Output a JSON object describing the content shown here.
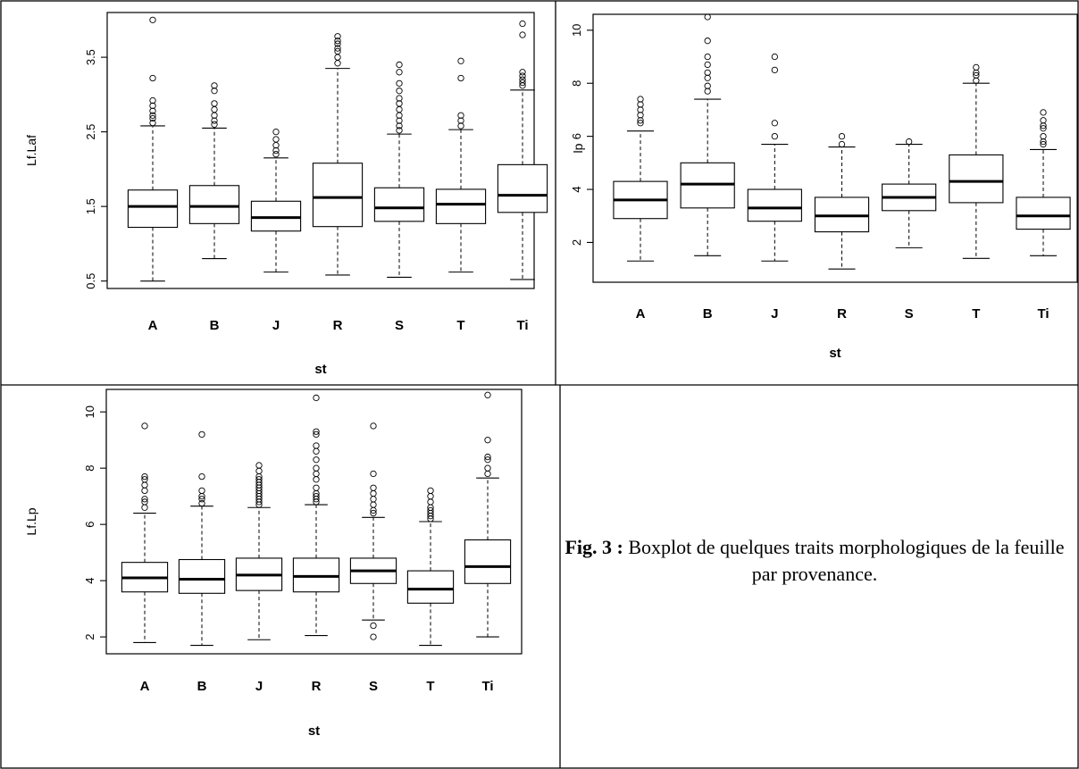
{
  "figure": {
    "caption_label": "Fig. 3 :",
    "caption_text": " Boxplot de quelques traits morphologiques de la feuille par provenance."
  },
  "chart_data": [
    {
      "type": "boxplot",
      "xlabel": "st",
      "ylabel": "Lf.Laf",
      "categories": [
        "A",
        "B",
        "J",
        "R",
        "S",
        "T",
        "Ti"
      ],
      "ylim": [
        0.4,
        4.1
      ],
      "yticks": [
        0.5,
        1.5,
        2.5,
        3.5
      ],
      "boxes": [
        {
          "whisker_low": 0.5,
          "q1": 1.22,
          "median": 1.5,
          "q3": 1.72,
          "whisker_high": 2.58,
          "outliers": [
            2.62,
            2.68,
            2.72,
            2.78,
            2.85,
            2.92,
            3.22,
            4.0
          ]
        },
        {
          "whisker_low": 0.8,
          "q1": 1.27,
          "median": 1.5,
          "q3": 1.78,
          "whisker_high": 2.55,
          "outliers": [
            2.6,
            2.65,
            2.72,
            2.8,
            2.88,
            3.05,
            3.12
          ]
        },
        {
          "whisker_low": 0.62,
          "q1": 1.17,
          "median": 1.35,
          "q3": 1.57,
          "whisker_high": 2.15,
          "outliers": [
            2.2,
            2.25,
            2.32,
            2.4,
            2.5
          ]
        },
        {
          "whisker_low": 0.58,
          "q1": 1.23,
          "median": 1.62,
          "q3": 2.08,
          "whisker_high": 3.35,
          "outliers": [
            3.42,
            3.5,
            3.58,
            3.62,
            3.68,
            3.72,
            3.78
          ]
        },
        {
          "whisker_low": 0.55,
          "q1": 1.3,
          "median": 1.48,
          "q3": 1.75,
          "whisker_high": 2.47,
          "outliers": [
            2.52,
            2.58,
            2.65,
            2.72,
            2.8,
            2.88,
            2.95,
            3.05,
            3.15,
            3.3,
            3.4
          ]
        },
        {
          "whisker_low": 0.62,
          "q1": 1.27,
          "median": 1.53,
          "q3": 1.73,
          "whisker_high": 2.53,
          "outliers": [
            2.58,
            2.65,
            2.72,
            3.22,
            3.45
          ]
        },
        {
          "whisker_low": 0.52,
          "q1": 1.42,
          "median": 1.65,
          "q3": 2.06,
          "whisker_high": 3.06,
          "outliers": [
            3.12,
            3.16,
            3.2,
            3.25,
            3.3,
            3.8,
            3.95
          ]
        }
      ]
    },
    {
      "type": "boxplot",
      "xlabel": "st",
      "ylabel": "lp",
      "categories": [
        "A",
        "B",
        "J",
        "R",
        "S",
        "T",
        "Ti"
      ],
      "ylim": [
        0.5,
        10.6
      ],
      "yticks": [
        2,
        4,
        6,
        8,
        10
      ],
      "boxes": [
        {
          "whisker_low": 1.3,
          "q1": 2.9,
          "median": 3.6,
          "q3": 4.3,
          "whisker_high": 6.2,
          "outliers": [
            6.5,
            6.6,
            6.8,
            7.0,
            7.2,
            7.4
          ]
        },
        {
          "whisker_low": 1.5,
          "q1": 3.3,
          "median": 4.2,
          "q3": 5.0,
          "whisker_high": 7.4,
          "outliers": [
            7.7,
            7.9,
            8.2,
            8.4,
            8.7,
            9.0,
            9.6,
            10.5
          ]
        },
        {
          "whisker_low": 1.3,
          "q1": 2.8,
          "median": 3.3,
          "q3": 4.0,
          "whisker_high": 5.7,
          "outliers": [
            6.0,
            6.5,
            8.5,
            9.0
          ]
        },
        {
          "whisker_low": 1.0,
          "q1": 2.4,
          "median": 3.0,
          "q3": 3.7,
          "whisker_high": 5.6,
          "outliers": [
            5.7,
            6.0
          ]
        },
        {
          "whisker_low": 1.8,
          "q1": 3.2,
          "median": 3.7,
          "q3": 4.2,
          "whisker_high": 5.7,
          "outliers": [
            5.8
          ]
        },
        {
          "whisker_low": 1.4,
          "q1": 3.5,
          "median": 4.3,
          "q3": 5.3,
          "whisker_high": 8.0,
          "outliers": [
            8.1,
            8.3,
            8.4,
            8.6
          ]
        },
        {
          "whisker_low": 1.5,
          "q1": 2.5,
          "median": 3.0,
          "q3": 3.7,
          "whisker_high": 5.5,
          "outliers": [
            5.7,
            5.8,
            6.0,
            6.3,
            6.4,
            6.6,
            6.9
          ]
        }
      ]
    },
    {
      "type": "boxplot",
      "xlabel": "st",
      "ylabel": "Lf.Lp",
      "categories": [
        "A",
        "B",
        "J",
        "R",
        "S",
        "T",
        "Ti"
      ],
      "ylim": [
        1.4,
        10.8
      ],
      "yticks": [
        2,
        4,
        6,
        8,
        10
      ],
      "boxes": [
        {
          "whisker_low": 1.8,
          "q1": 3.6,
          "median": 4.1,
          "q3": 4.65,
          "whisker_high": 6.4,
          "outliers": [
            6.6,
            6.8,
            6.9,
            7.2,
            7.4,
            7.6,
            7.7,
            9.5
          ]
        },
        {
          "whisker_low": 1.7,
          "q1": 3.55,
          "median": 4.05,
          "q3": 4.75,
          "whisker_high": 6.65,
          "outliers": [
            6.75,
            6.9,
            7.0,
            7.2,
            7.7,
            9.2
          ]
        },
        {
          "whisker_low": 1.9,
          "q1": 3.65,
          "median": 4.2,
          "q3": 4.8,
          "whisker_high": 6.6,
          "outliers": [
            6.7,
            6.8,
            6.9,
            7.0,
            7.1,
            7.2,
            7.3,
            7.4,
            7.5,
            7.6,
            7.7,
            7.9,
            8.1
          ]
        },
        {
          "whisker_low": 2.05,
          "q1": 3.6,
          "median": 4.15,
          "q3": 4.8,
          "whisker_high": 6.7,
          "outliers": [
            6.8,
            6.9,
            7.0,
            7.1,
            7.3,
            7.6,
            7.8,
            8.0,
            8.3,
            8.6,
            8.8,
            9.2,
            9.3,
            10.5
          ]
        },
        {
          "whisker_low": 2.6,
          "q1": 3.9,
          "median": 4.35,
          "q3": 4.8,
          "whisker_high": 6.25,
          "outliers": [
            2.4,
            2.0,
            6.4,
            6.5,
            6.7,
            6.9,
            7.1,
            7.3,
            7.8,
            9.5
          ]
        },
        {
          "whisker_low": 1.7,
          "q1": 3.2,
          "median": 3.7,
          "q3": 4.35,
          "whisker_high": 6.1,
          "outliers": [
            6.2,
            6.3,
            6.4,
            6.5,
            6.6,
            6.8,
            7.0,
            7.2
          ]
        },
        {
          "whisker_low": 2.0,
          "q1": 3.9,
          "median": 4.5,
          "q3": 5.45,
          "whisker_high": 7.65,
          "outliers": [
            7.8,
            8.0,
            8.3,
            8.4,
            9.0,
            10.6
          ]
        }
      ]
    }
  ]
}
